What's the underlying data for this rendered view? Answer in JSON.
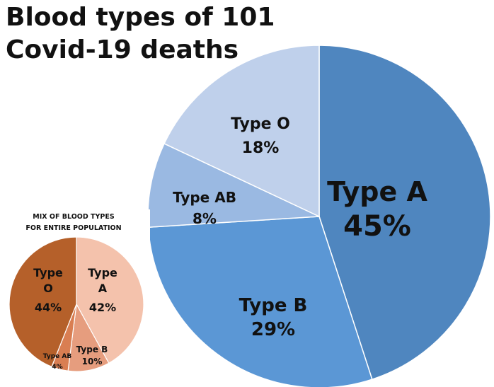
{
  "title_lines": [
    "Blood types of 101",
    "Covid-19 deaths"
  ],
  "chart_data": [
    {
      "type": "pie",
      "title": "Blood types of 101 Covid-19 deaths",
      "slices": [
        {
          "name": "Type A",
          "value": 45,
          "label": "45%",
          "color": "#4f86bf"
        },
        {
          "name": "Type B",
          "value": 29,
          "label": "29%",
          "color": "#5b97d5"
        },
        {
          "name": "Type AB",
          "value": 8,
          "label": "8%",
          "color": "#9ab9e2"
        },
        {
          "name": "Type O",
          "value": 18,
          "label": "18%",
          "color": "#bfd0eb"
        }
      ]
    },
    {
      "type": "pie",
      "title_lines": [
        "MIX OF BLOOD TYPES",
        "FOR ENTIRE POPULATION"
      ],
      "slices": [
        {
          "name": "Type A",
          "value": 42,
          "label": "42%",
          "color": "#f4c2ac"
        },
        {
          "name": "Type B",
          "value": 10,
          "label": "10%",
          "color": "#e69d7e"
        },
        {
          "name": "Type AB",
          "value": 4,
          "label": "4%",
          "color": "#d97e52"
        },
        {
          "name": "Type O",
          "value": 44,
          "label": "44%",
          "color": "#b5602a"
        }
      ]
    }
  ]
}
